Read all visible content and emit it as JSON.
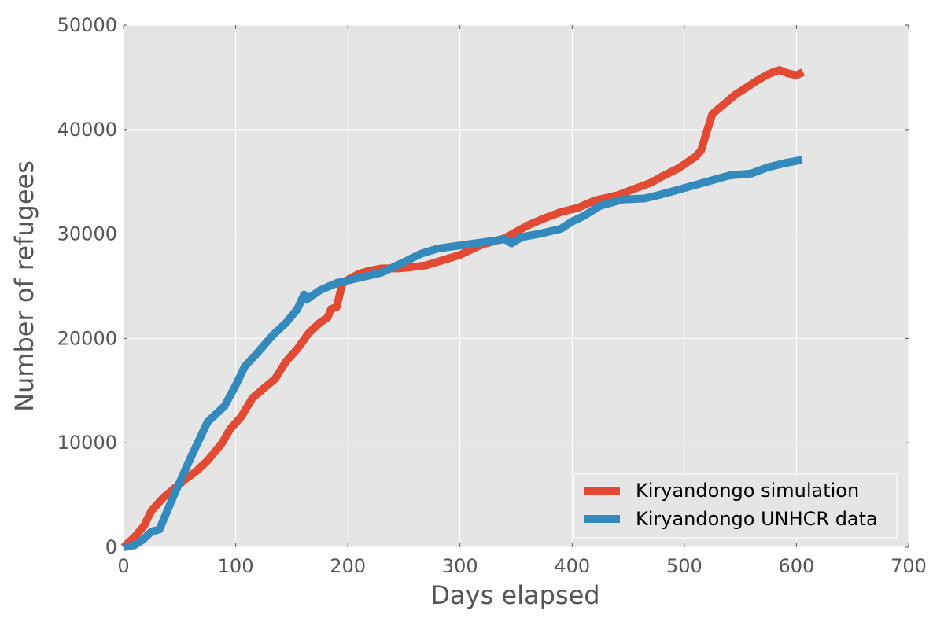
{
  "chart_data": {
    "type": "line",
    "title": "",
    "xlabel": "Days elapsed",
    "ylabel": "Number of refugees",
    "xlim": [
      0,
      700
    ],
    "ylim": [
      0,
      50000
    ],
    "xticks": [
      0,
      100,
      200,
      300,
      400,
      500,
      600,
      700
    ],
    "yticks": [
      0,
      10000,
      20000,
      30000,
      40000,
      50000
    ],
    "x_tick_labels": [
      "0",
      "100",
      "200",
      "300",
      "400",
      "500",
      "600",
      "700"
    ],
    "y_tick_labels": [
      "0",
      "10000",
      "20000",
      "30000",
      "40000",
      "50000"
    ],
    "grid": true,
    "legend_position": "bottom-right",
    "series": [
      {
        "name": "Kiryandongo simulation",
        "color": "#e24a33",
        "points": [
          [
            0,
            0
          ],
          [
            10,
            1000
          ],
          [
            18,
            2000
          ],
          [
            25,
            3500
          ],
          [
            35,
            4700
          ],
          [
            45,
            5600
          ],
          [
            55,
            6500
          ],
          [
            65,
            7300
          ],
          [
            75,
            8300
          ],
          [
            88,
            10000
          ],
          [
            95,
            11300
          ],
          [
            105,
            12500
          ],
          [
            115,
            14300
          ],
          [
            125,
            15200
          ],
          [
            135,
            16100
          ],
          [
            145,
            17800
          ],
          [
            155,
            19000
          ],
          [
            165,
            20500
          ],
          [
            175,
            21500
          ],
          [
            182,
            22000
          ],
          [
            185,
            22800
          ],
          [
            190,
            23000
          ],
          [
            195,
            25200
          ],
          [
            200,
            25600
          ],
          [
            210,
            26200
          ],
          [
            220,
            26500
          ],
          [
            230,
            26700
          ],
          [
            245,
            26700
          ],
          [
            255,
            26800
          ],
          [
            270,
            27000
          ],
          [
            285,
            27500
          ],
          [
            300,
            28000
          ],
          [
            320,
            29000
          ],
          [
            340,
            29600
          ],
          [
            350,
            30200
          ],
          [
            360,
            30800
          ],
          [
            375,
            31500
          ],
          [
            390,
            32100
          ],
          [
            405,
            32500
          ],
          [
            420,
            33200
          ],
          [
            440,
            33700
          ],
          [
            455,
            34300
          ],
          [
            470,
            34900
          ],
          [
            480,
            35500
          ],
          [
            495,
            36300
          ],
          [
            510,
            37400
          ],
          [
            515,
            38000
          ],
          [
            520,
            39800
          ],
          [
            525,
            41500
          ],
          [
            535,
            42400
          ],
          [
            545,
            43300
          ],
          [
            555,
            44000
          ],
          [
            565,
            44700
          ],
          [
            575,
            45300
          ],
          [
            582,
            45600
          ],
          [
            585,
            45700
          ],
          [
            592,
            45400
          ],
          [
            600,
            45200
          ],
          [
            606,
            45500
          ]
        ]
      },
      {
        "name": "Kiryandongo UNHCR data",
        "color": "#348abd",
        "points": [
          [
            0,
            0
          ],
          [
            10,
            200
          ],
          [
            18,
            800
          ],
          [
            25,
            1500
          ],
          [
            32,
            1700
          ],
          [
            45,
            5000
          ],
          [
            60,
            8600
          ],
          [
            75,
            12000
          ],
          [
            90,
            13500
          ],
          [
            100,
            15500
          ],
          [
            108,
            17300
          ],
          [
            120,
            18700
          ],
          [
            133,
            20300
          ],
          [
            145,
            21500
          ],
          [
            155,
            22800
          ],
          [
            161,
            24200
          ],
          [
            163,
            23700
          ],
          [
            175,
            24600
          ],
          [
            190,
            25300
          ],
          [
            210,
            25800
          ],
          [
            230,
            26300
          ],
          [
            250,
            27300
          ],
          [
            265,
            28100
          ],
          [
            280,
            28600
          ],
          [
            300,
            28900
          ],
          [
            320,
            29200
          ],
          [
            340,
            29500
          ],
          [
            346,
            29100
          ],
          [
            355,
            29700
          ],
          [
            370,
            30000
          ],
          [
            390,
            30500
          ],
          [
            400,
            31200
          ],
          [
            410,
            31700
          ],
          [
            425,
            32700
          ],
          [
            445,
            33300
          ],
          [
            465,
            33400
          ],
          [
            480,
            33800
          ],
          [
            500,
            34400
          ],
          [
            520,
            35000
          ],
          [
            540,
            35600
          ],
          [
            560,
            35800
          ],
          [
            575,
            36400
          ],
          [
            590,
            36800
          ],
          [
            605,
            37100
          ]
        ]
      }
    ]
  }
}
